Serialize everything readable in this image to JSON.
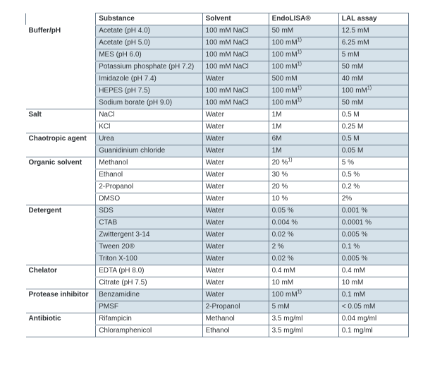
{
  "colors": {
    "border": "#697b8c",
    "shade": "#d6e2ea",
    "plain": "#ffffff",
    "text": "#2b2f33"
  },
  "columns": [
    {
      "key": "category",
      "label": ""
    },
    {
      "key": "substance",
      "label": "Substance"
    },
    {
      "key": "solvent",
      "label": "Solvent"
    },
    {
      "key": "endolisa",
      "label": "EndoLISA®"
    },
    {
      "key": "lal",
      "label": "LAL assay"
    }
  ],
  "header": {
    "c0": "",
    "c1": "Substance",
    "c2": "Solvent",
    "c3": "EndoLISA®",
    "c4": "LAL assay"
  },
  "groups": [
    {
      "category": "Buffer/pH",
      "rows": [
        {
          "shade": true,
          "substance": "Acetate (pH 4.0)",
          "solvent": "100 mM NaCl",
          "endolisa": "50 mM",
          "endolisa_sup": "",
          "lal": "12.5 mM",
          "lal_sup": ""
        },
        {
          "shade": true,
          "substance": "Acetate (pH 5.0)",
          "solvent": "100 mM NaCl",
          "endolisa": "100 mM",
          "endolisa_sup": "1)",
          "lal": "6.25 mM",
          "lal_sup": ""
        },
        {
          "shade": true,
          "substance": "MES (pH 6.0)",
          "solvent": "100 mM NaCl",
          "endolisa": "100 mM",
          "endolisa_sup": "1)",
          "lal": "5 mM",
          "lal_sup": ""
        },
        {
          "shade": true,
          "substance": "Potassium phosphate (pH 7.2)",
          "solvent": "100 mM NaCl",
          "endolisa": "100 mM",
          "endolisa_sup": "1)",
          "lal": "50 mM",
          "lal_sup": ""
        },
        {
          "shade": true,
          "substance": "Imidazole (pH 7.4)",
          "solvent": "Water",
          "endolisa": "500 mM",
          "endolisa_sup": "",
          "lal": "40 mM",
          "lal_sup": ""
        },
        {
          "shade": true,
          "substance": "HEPES (pH 7.5)",
          "solvent": "100 mM NaCl",
          "endolisa": "100 mM",
          "endolisa_sup": "1)",
          "lal": "100 mM",
          "lal_sup": "1)"
        },
        {
          "shade": true,
          "substance": "Sodium borate (pH 9.0)",
          "solvent": "100 mM NaCl",
          "endolisa": "100 mM",
          "endolisa_sup": "1)",
          "lal": "50 mM",
          "lal_sup": ""
        }
      ]
    },
    {
      "category": "Salt",
      "rows": [
        {
          "shade": false,
          "substance": "NaCl",
          "solvent": "Water",
          "endolisa": "1M",
          "endolisa_sup": "",
          "lal": "0.5 M",
          "lal_sup": ""
        },
        {
          "shade": false,
          "substance": "KCl",
          "solvent": "Water",
          "endolisa": "1M",
          "endolisa_sup": "",
          "lal": "0.25 M",
          "lal_sup": ""
        }
      ]
    },
    {
      "category": "Chaotropic agent",
      "rows": [
        {
          "shade": true,
          "substance": "Urea",
          "solvent": "Water",
          "endolisa": "6M",
          "endolisa_sup": "",
          "lal": "0.5 M",
          "lal_sup": ""
        },
        {
          "shade": true,
          "substance": "Guanidinium chloride",
          "solvent": "Water",
          "endolisa": "1M",
          "endolisa_sup": "",
          "lal": "0.05 M",
          "lal_sup": ""
        }
      ]
    },
    {
      "category": "Organic solvent",
      "rows": [
        {
          "shade": false,
          "substance": "Methanol",
          "solvent": "Water",
          "endolisa": "20 %",
          "endolisa_sup": "1)",
          "lal": "5 %",
          "lal_sup": ""
        },
        {
          "shade": false,
          "substance": "Ethanol",
          "solvent": "Water",
          "endolisa": "30 %",
          "endolisa_sup": "",
          "lal": "0.5 %",
          "lal_sup": ""
        },
        {
          "shade": false,
          "substance": "2-Propanol",
          "solvent": "Water",
          "endolisa": "20 %",
          "endolisa_sup": "",
          "lal": "0.2 %",
          "lal_sup": ""
        },
        {
          "shade": false,
          "substance": "DMSO",
          "solvent": "Water",
          "endolisa": "10 %",
          "endolisa_sup": "",
          "lal": "2%",
          "lal_sup": ""
        }
      ]
    },
    {
      "category": "Detergent",
      "rows": [
        {
          "shade": true,
          "substance": "SDS",
          "solvent": "Water",
          "endolisa": "0.05 %",
          "endolisa_sup": "",
          "lal": "0.001 %",
          "lal_sup": ""
        },
        {
          "shade": true,
          "substance": "CTAB",
          "solvent": "Water",
          "endolisa": "0.004 %",
          "endolisa_sup": "",
          "lal": "0.0001 %",
          "lal_sup": ""
        },
        {
          "shade": true,
          "substance": "Zwittergent 3-14",
          "solvent": "Water",
          "endolisa": "0.02 %",
          "endolisa_sup": "",
          "lal": "0.005 %",
          "lal_sup": ""
        },
        {
          "shade": true,
          "substance": "Tween 20®",
          "solvent": "Water",
          "endolisa": "2 %",
          "endolisa_sup": "",
          "lal": "0.1 %",
          "lal_sup": ""
        },
        {
          "shade": true,
          "substance": "Triton X-100",
          "solvent": "Water",
          "endolisa": "0.02 %",
          "endolisa_sup": "",
          "lal": "0.005 %",
          "lal_sup": ""
        }
      ]
    },
    {
      "category": "Chelator",
      "rows": [
        {
          "shade": false,
          "substance": "EDTA (pH 8.0)",
          "solvent": "Water",
          "endolisa": "0.4 mM",
          "endolisa_sup": "",
          "lal": "0.4 mM",
          "lal_sup": ""
        },
        {
          "shade": false,
          "substance": "Citrate (pH 7.5)",
          "solvent": "Water",
          "endolisa": "10 mM",
          "endolisa_sup": "",
          "lal": "10 mM",
          "lal_sup": ""
        }
      ]
    },
    {
      "category": "Protease inhibitor",
      "rows": [
        {
          "shade": true,
          "substance": "Benzamidine",
          "solvent": "Water",
          "endolisa": "100 mM",
          "endolisa_sup": "1)",
          "lal": "0.1 mM",
          "lal_sup": ""
        },
        {
          "shade": true,
          "substance": "PMSF",
          "solvent": "2-Propanol",
          "endolisa": "5 mM",
          "endolisa_sup": "",
          "lal": "< 0.05 mM",
          "lal_sup": ""
        }
      ]
    },
    {
      "category": "Antibiotic",
      "rows": [
        {
          "shade": false,
          "substance": "Rifampicin",
          "solvent": "Methanol",
          "endolisa": "3.5 mg/ml",
          "endolisa_sup": "",
          "lal": "0.04 mg/ml",
          "lal_sup": ""
        },
        {
          "shade": false,
          "substance": "Chloramphenicol",
          "solvent": "Ethanol",
          "endolisa": "3.5 mg/ml",
          "endolisa_sup": "",
          "lal": "0.1 mg/ml",
          "lal_sup": ""
        }
      ]
    }
  ]
}
